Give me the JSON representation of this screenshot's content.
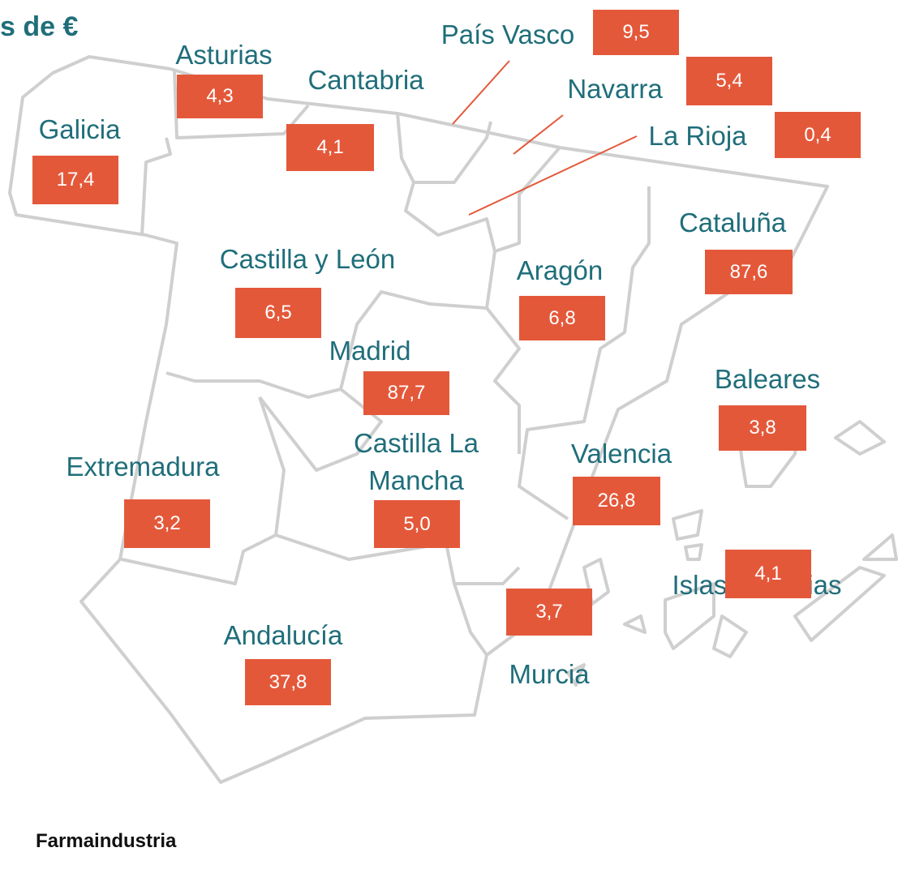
{
  "title": "s de €",
  "source": "Farmaindustria",
  "regions": [
    {
      "name": "Galicia",
      "value": "17,4"
    },
    {
      "name": "Asturias",
      "value": "4,3"
    },
    {
      "name": "Cantabria",
      "value": "4,1"
    },
    {
      "name": "País Vasco",
      "value": "9,5"
    },
    {
      "name": "Navarra",
      "value": "5,4"
    },
    {
      "name": "La Rioja",
      "value": "0,4"
    },
    {
      "name": "Cataluña",
      "value": "87,6"
    },
    {
      "name": "Castilla y León",
      "value": "6,5"
    },
    {
      "name": "Aragón",
      "value": "6,8"
    },
    {
      "name": "Madrid",
      "value": "87,7"
    },
    {
      "name": "Baleares",
      "value": "3,8"
    },
    {
      "name": "Castilla La Mancha",
      "value": "5,0"
    },
    {
      "name": "Valencia",
      "value": "26,8"
    },
    {
      "name": "Extremadura",
      "value": "3,2"
    },
    {
      "name": "Murcia",
      "value": "3,7"
    },
    {
      "name": "Andalucía",
      "value": "37,8"
    },
    {
      "name": "Islas Canarias",
      "value": "4,1"
    }
  ]
}
